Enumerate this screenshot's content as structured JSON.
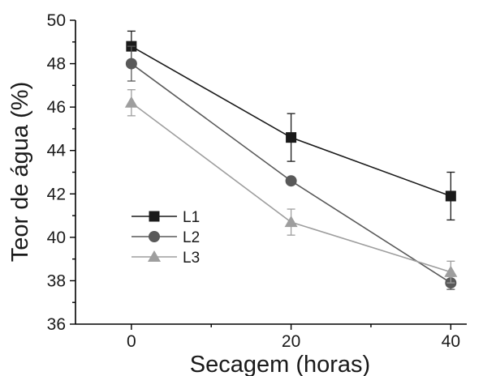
{
  "chart_data": {
    "type": "line",
    "xlabel": "Secagem (horas)",
    "ylabel": "Teor de água (%)",
    "x": [
      0,
      20,
      40
    ],
    "xticks": [
      0,
      20,
      40
    ],
    "xlim": [
      -7,
      42
    ],
    "ylim": [
      36,
      50
    ],
    "yticks": [
      36,
      38,
      40,
      42,
      44,
      46,
      48,
      50
    ],
    "legend_position": "left-middle",
    "grid": false,
    "series": [
      {
        "name": "L1",
        "values": [
          48.8,
          44.6,
          41.9
        ],
        "errors": [
          0.7,
          1.1,
          1.1
        ],
        "color": "#1a1a1a",
        "marker": "square"
      },
      {
        "name": "L2",
        "values": [
          48.0,
          42.6,
          37.9
        ],
        "errors": [
          0.8,
          0.0,
          0.3
        ],
        "color": "#595959",
        "marker": "circle"
      },
      {
        "name": "L3",
        "values": [
          46.2,
          40.7,
          38.4
        ],
        "errors": [
          0.6,
          0.6,
          0.5
        ],
        "color": "#9e9e9e",
        "marker": "triangle"
      }
    ]
  }
}
